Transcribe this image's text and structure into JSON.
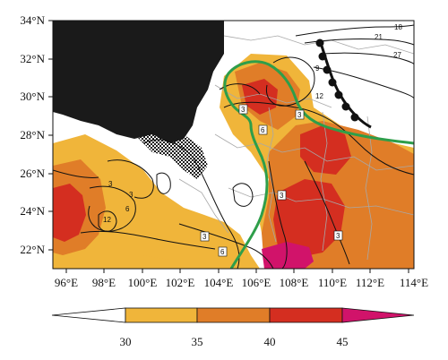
{
  "map": {
    "lon_range": [
      95,
      114
    ],
    "lat_range": [
      21,
      34
    ],
    "lon_ticks": [
      96,
      98,
      100,
      102,
      104,
      106,
      108,
      110,
      112,
      114
    ],
    "lat_ticks": [
      22,
      24,
      26,
      28,
      30,
      32,
      34
    ],
    "lon_labels": [
      "96°E",
      "98°E",
      "100°E",
      "102°E",
      "104°E",
      "106°E",
      "108°E",
      "110°E",
      "112°E",
      "114°E"
    ],
    "lat_labels": [
      "22°N",
      "24°N",
      "26°N",
      "28°N",
      "30°N",
      "32°N",
      "34°N"
    ],
    "colorbar": {
      "levels": [
        30,
        35,
        40,
        45
      ],
      "labels": [
        "30",
        "35",
        "40",
        "45"
      ],
      "colors": [
        "#ffffff",
        "#f0b53a",
        "#e07d28",
        "#d42e20",
        "#d1136a"
      ]
    },
    "contour_labels": [
      "18",
      "21",
      "27",
      "9",
      "12",
      "3",
      "6",
      "3",
      "3",
      "6",
      "12",
      "3",
      "3",
      "3",
      "6",
      "3"
    ],
    "colors": {
      "terrain_mask": "#1a1a1a",
      "front_line": "#111111",
      "green_outline": "#2e9e4a",
      "boundaries": "#a8a8a8",
      "contours": "#111111"
    }
  }
}
